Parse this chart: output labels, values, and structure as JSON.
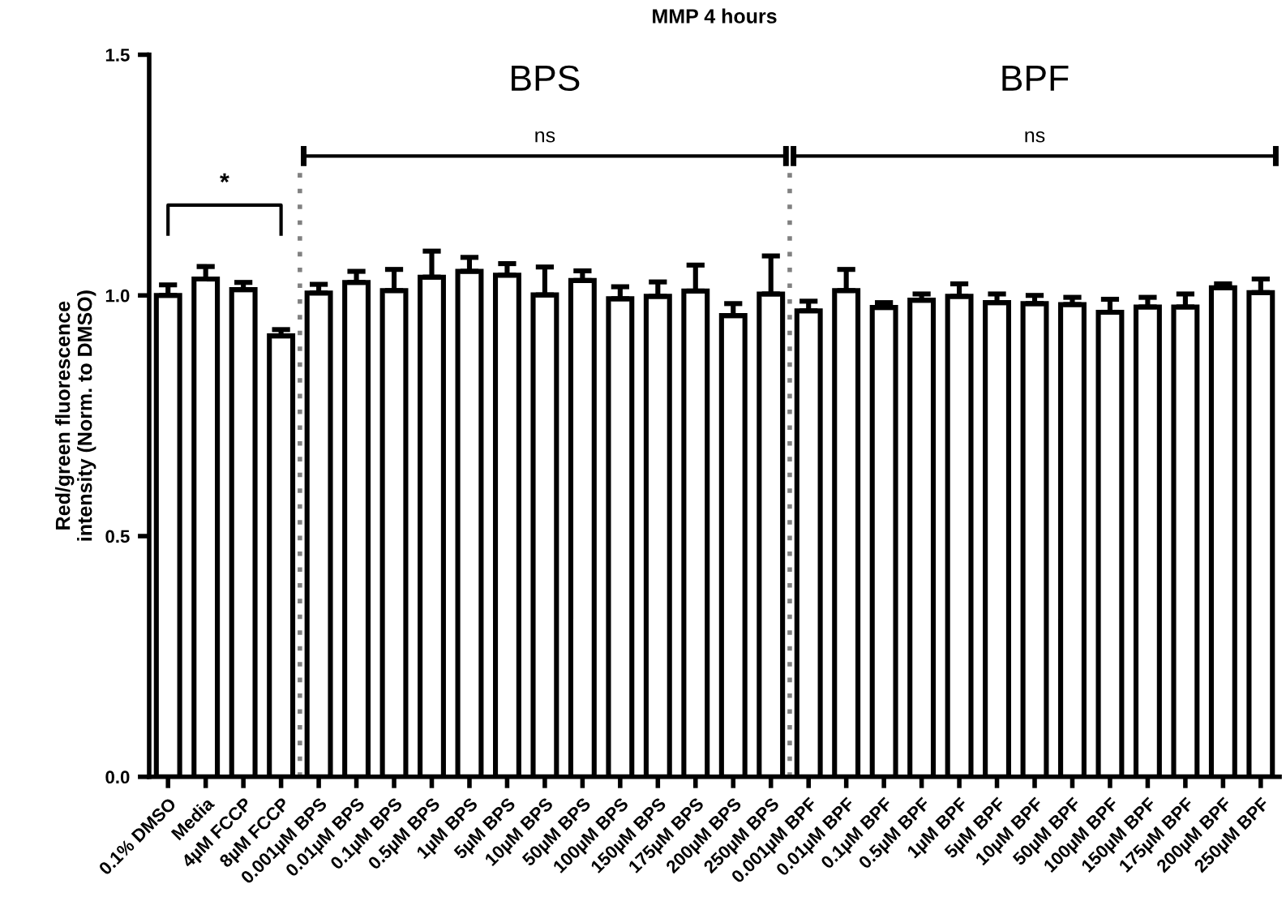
{
  "chart_data": {
    "type": "bar",
    "title": "MMP 4 hours",
    "ylabel": "Red/green fluorescence\nintensity (Norm. to DMSO)",
    "categories": [
      "0.1% DMSO",
      "Media",
      "4µM FCCP",
      "8µM FCCP",
      "0.001µM BPS",
      "0.01µM BPS",
      "0.1µM BPS",
      "0.5µM BPS",
      "1µM BPS",
      "5µM BPS",
      "10µM BPS",
      "50µM BPS",
      "100µM BPS",
      "150µM BPS",
      "175µM BPS",
      "200µM BPS",
      "250µM BPS",
      "0.001µM BPF",
      "0.01µM BPF",
      "0.1µM BPF",
      "0.5µM BPF",
      "1µM BPF",
      "5µM BPF",
      "10µM BPF",
      "50µM BPF",
      "100µM BPF",
      "150µM BPF",
      "175µM BPF",
      "200µM BPF",
      "250µM BPF"
    ],
    "values": [
      1.0,
      1.034,
      1.012,
      0.916,
      1.005,
      1.027,
      1.01,
      1.038,
      1.05,
      1.042,
      1.001,
      1.031,
      0.993,
      0.998,
      1.009,
      0.958,
      1.003,
      0.968,
      1.01,
      0.975,
      0.99,
      0.998,
      0.985,
      0.983,
      0.981,
      0.965,
      0.976,
      0.976,
      1.016,
      1.006
    ],
    "errors": [
      [
        1.0,
        1.022
      ],
      [
        1.034,
        1.06
      ],
      [
        1.012,
        1.027
      ],
      [
        0.916,
        0.929
      ],
      [
        1.005,
        1.023
      ],
      [
        1.027,
        1.05
      ],
      [
        1.01,
        1.054
      ],
      [
        1.038,
        1.092
      ],
      [
        1.05,
        1.079
      ],
      [
        1.042,
        1.066
      ],
      [
        1.001,
        1.059
      ],
      [
        1.031,
        1.051
      ],
      [
        0.993,
        1.018
      ],
      [
        0.998,
        1.028
      ],
      [
        1.009,
        1.063
      ],
      [
        0.958,
        0.983
      ],
      [
        1.003,
        1.082
      ],
      [
        0.968,
        0.988
      ],
      [
        1.01,
        1.054
      ],
      [
        0.975,
        0.985
      ],
      [
        0.99,
        1.003
      ],
      [
        0.998,
        1.024
      ],
      [
        0.985,
        1.003
      ],
      [
        0.983,
        1.0
      ],
      [
        0.981,
        0.996
      ],
      [
        0.965,
        0.992
      ],
      [
        0.976,
        0.996
      ],
      [
        0.976,
        1.003
      ],
      [
        1.016,
        1.024
      ],
      [
        1.006,
        1.034
      ]
    ],
    "color": "#ffffff",
    "ylim": [
      0,
      1.5
    ],
    "yticks": [
      {
        "value": 0,
        "label": "0.0"
      },
      {
        "value": 0.5,
        "label": "0.5"
      },
      {
        "value": 1.0,
        "label": "1.0"
      },
      {
        "value": 1.5,
        "label": "1.5"
      }
    ],
    "grid": false,
    "legend": false,
    "annotations": [
      "*",
      "BPS",
      "ns",
      "BPF",
      "ns"
    ]
  }
}
